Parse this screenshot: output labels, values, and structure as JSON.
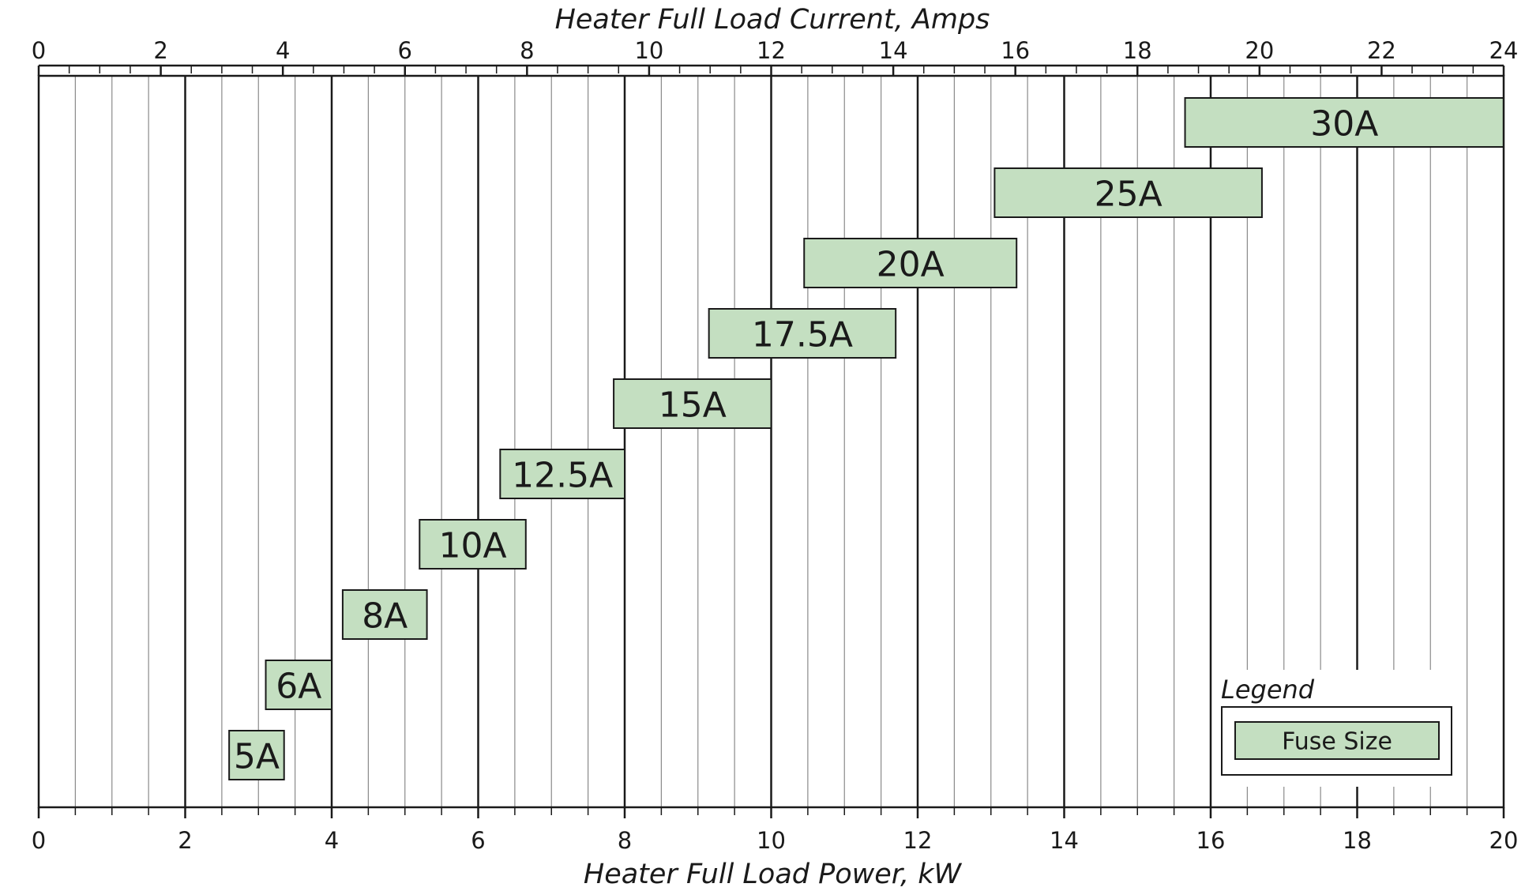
{
  "chart_data": {
    "type": "bar",
    "orientation": "horizontal-range",
    "title": "",
    "xlabel_top": "Heater Full Load Current, Amps",
    "xlabel_bottom": "Heater Full Load Power, kW",
    "top_axis": {
      "range": [
        0,
        24
      ],
      "ticks": [
        "0",
        "2",
        "4",
        "6",
        "8",
        "10",
        "12",
        "14",
        "16",
        "18",
        "20",
        "22",
        "24"
      ]
    },
    "bottom_axis": {
      "range": [
        0,
        20
      ],
      "ticks": [
        "0",
        "2",
        "4",
        "6",
        "8",
        "10",
        "12",
        "14",
        "16",
        "18",
        "20"
      ]
    },
    "grid": true,
    "bar_color": "#c4dfc1",
    "series": [
      {
        "label": "30A",
        "start_kw": 15.65,
        "end_kw": 20.0
      },
      {
        "label": "25A",
        "start_kw": 13.05,
        "end_kw": 16.7
      },
      {
        "label": "20A",
        "start_kw": 10.45,
        "end_kw": 13.35
      },
      {
        "label": "17.5A",
        "start_kw": 9.15,
        "end_kw": 11.7
      },
      {
        "label": "15A",
        "start_kw": 7.85,
        "end_kw": 10.0
      },
      {
        "label": "12.5A",
        "start_kw": 6.3,
        "end_kw": 8.0
      },
      {
        "label": "10A",
        "start_kw": 5.2,
        "end_kw": 6.65
      },
      {
        "label": "8A",
        "start_kw": 4.15,
        "end_kw": 5.3
      },
      {
        "label": "6A",
        "start_kw": 3.1,
        "end_kw": 4.0
      },
      {
        "label": "5A",
        "start_kw": 2.6,
        "end_kw": 3.35
      }
    ],
    "legend": {
      "title": "Legend",
      "label": "Fuse Size",
      "position": "bottom-right"
    }
  }
}
